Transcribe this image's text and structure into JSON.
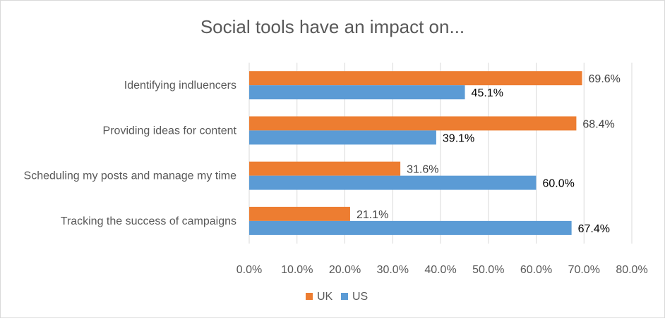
{
  "chart_data": {
    "type": "bar",
    "orientation": "horizontal",
    "title": "Social tools have an impact on...",
    "categories": [
      "Identifying indluencers",
      "Providing ideas for content",
      "Scheduling my posts and manage my time",
      "Tracking the success of campaigns"
    ],
    "series": [
      {
        "name": "UK",
        "color": "#ED7D31",
        "values": [
          69.6,
          68.4,
          31.6,
          21.1
        ],
        "labels": [
          "69.6%",
          "68.4%",
          "31.6%",
          "21.1%"
        ]
      },
      {
        "name": "US",
        "color": "#5B9BD5",
        "values": [
          45.1,
          39.1,
          60.0,
          67.4
        ],
        "labels": [
          "45.1%",
          "39.1%",
          "60.0%",
          "67.4%"
        ]
      }
    ],
    "xlim": [
      0,
      80
    ],
    "x_ticks": [
      "0.0%",
      "10.0%",
      "20.0%",
      "30.0%",
      "40.0%",
      "50.0%",
      "60.0%",
      "70.0%",
      "80.0%"
    ],
    "grid": true,
    "legend_position": "bottom"
  }
}
